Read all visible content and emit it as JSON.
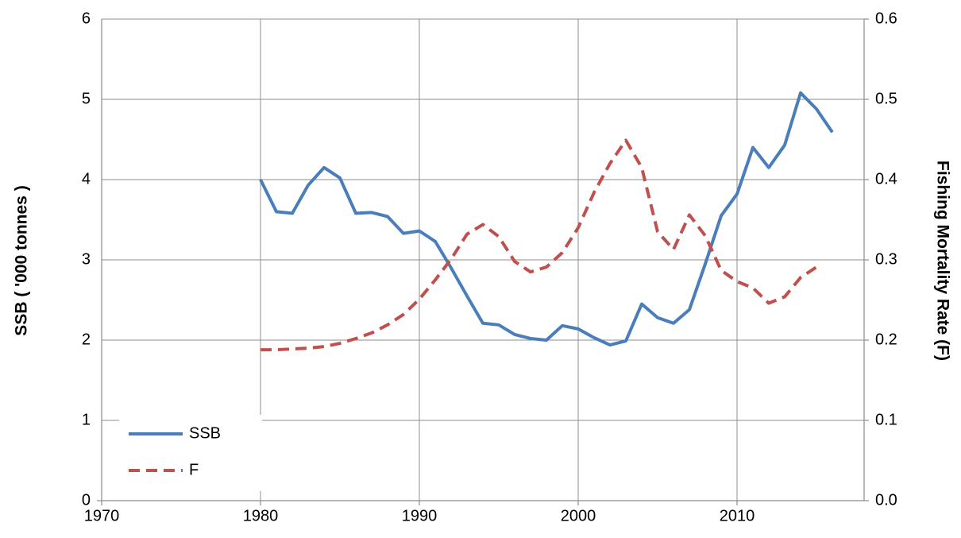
{
  "chart_data": {
    "type": "line",
    "ylabel": "SSB ( '000 tonnes )",
    "y2label": "Fishing Mortality Rate (F)",
    "x": [
      1980,
      1981,
      1982,
      1983,
      1984,
      1985,
      1986,
      1987,
      1988,
      1989,
      1990,
      1991,
      1992,
      1993,
      1994,
      1995,
      1996,
      1997,
      1998,
      1999,
      2000,
      2001,
      2002,
      2003,
      2004,
      2005,
      2006,
      2007,
      2008,
      2009,
      2010,
      2011,
      2012,
      2013,
      2014,
      2015,
      2016
    ],
    "series": [
      {
        "name": "SSB",
        "color": "#4a7ebb",
        "dashed": false,
        "axis": "y",
        "values": [
          4.0,
          3.6,
          3.58,
          3.93,
          4.15,
          4.02,
          3.58,
          3.59,
          3.54,
          3.33,
          3.36,
          3.23,
          2.9,
          2.55,
          2.21,
          2.19,
          2.07,
          2.02,
          2.0,
          2.18,
          2.14,
          2.03,
          1.94,
          1.99,
          2.45,
          2.28,
          2.21,
          2.38,
          2.95,
          3.55,
          3.82,
          4.4,
          4.15,
          4.43,
          5.08,
          4.88,
          4.59
        ]
      },
      {
        "name": "F",
        "color": "#c0504d",
        "dashed": true,
        "axis": "y2",
        "values": [
          0.188,
          0.188,
          0.189,
          0.19,
          0.192,
          0.196,
          0.202,
          0.209,
          0.219,
          0.232,
          0.251,
          0.275,
          0.301,
          0.332,
          0.344,
          0.329,
          0.298,
          0.285,
          0.291,
          0.309,
          0.34,
          0.384,
          0.42,
          0.449,
          0.415,
          0.335,
          0.313,
          0.356,
          0.33,
          0.287,
          0.273,
          0.265,
          0.246,
          0.254,
          0.278,
          0.291,
          null
        ]
      }
    ],
    "xlim": [
      1970,
      2018
    ],
    "xticks": [
      1970,
      1980,
      1990,
      2000,
      2010
    ],
    "ylim": [
      0,
      6
    ],
    "yticks": [
      0,
      1,
      2,
      3,
      4,
      5,
      6
    ],
    "y2lim": [
      0,
      0.6
    ],
    "y2ticks": [
      {
        "value": 0,
        "label": "0.0"
      },
      0.1,
      0.2,
      0.3,
      0.4,
      0.5,
      0.6
    ],
    "grid": true,
    "legend": "lower left"
  }
}
